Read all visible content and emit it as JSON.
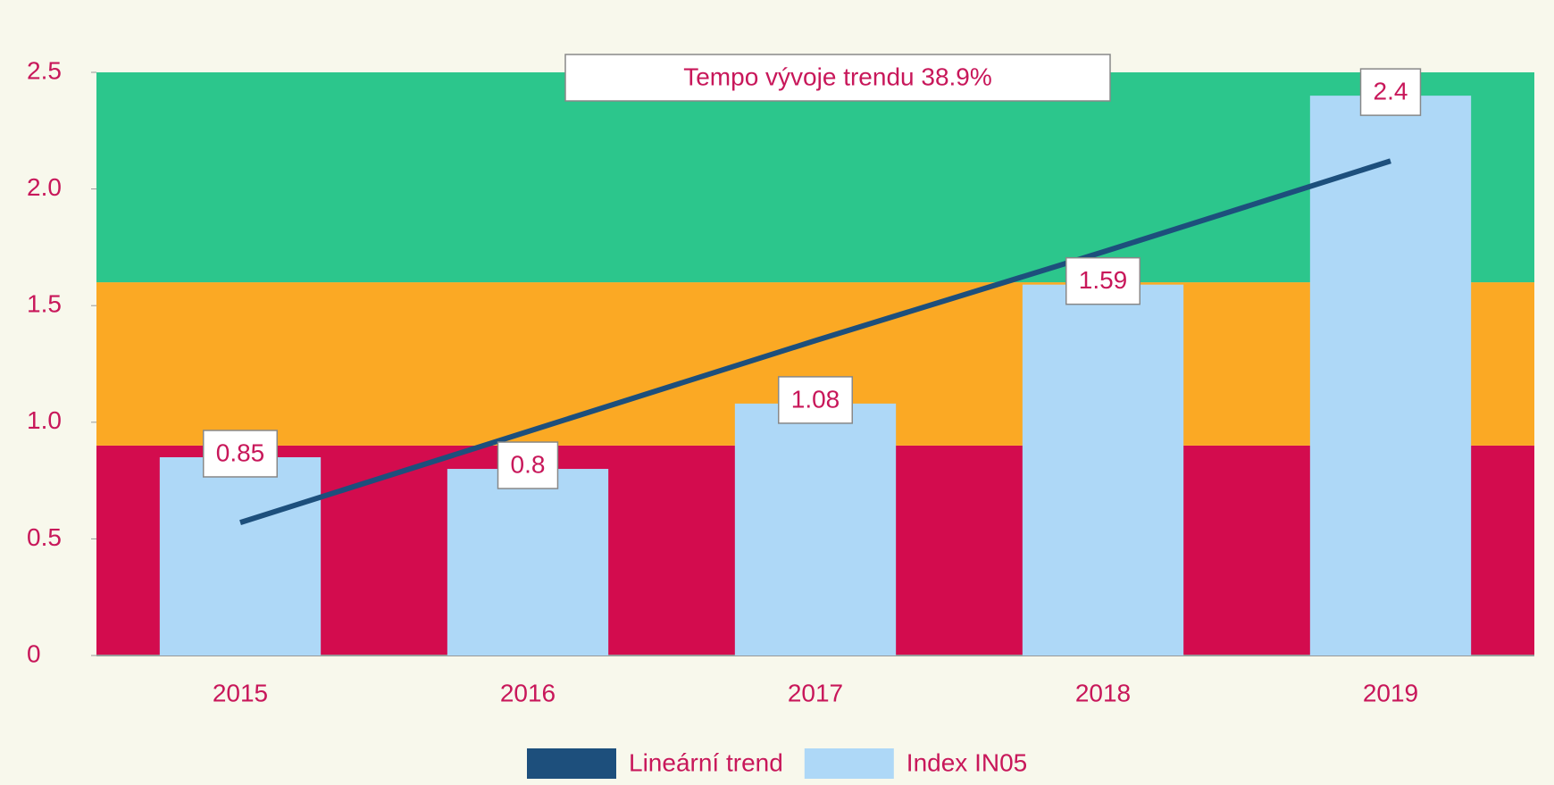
{
  "chart_data": {
    "type": "bar",
    "annotation": "Tempo vývoje trendu 38.9%",
    "categories": [
      "2015",
      "2016",
      "2017",
      "2018",
      "2019"
    ],
    "series": [
      {
        "name": "Lineární trend",
        "type": "line",
        "color": "#1d4f7c",
        "values": [
          0.57,
          0.96,
          1.35,
          1.73,
          2.12
        ]
      },
      {
        "name": "Index IN05",
        "type": "bar",
        "color": "#aed8f7",
        "values": [
          0.85,
          0.8,
          1.08,
          1.59,
          2.4
        ]
      }
    ],
    "bands": [
      {
        "from": 0,
        "to": 0.9,
        "color": "#d30c4e"
      },
      {
        "from": 0.9,
        "to": 1.6,
        "color": "#fba924"
      },
      {
        "from": 1.6,
        "to": 2.5,
        "color": "#2cc68c"
      }
    ],
    "ylim": [
      0,
      2.5
    ],
    "yticks": [
      0,
      0.5,
      {
        "value": 1,
        "label": "1.0"
      },
      1.5,
      {
        "value": 2,
        "label": "2.0"
      },
      2.5
    ],
    "label_color": "#c8175a"
  }
}
